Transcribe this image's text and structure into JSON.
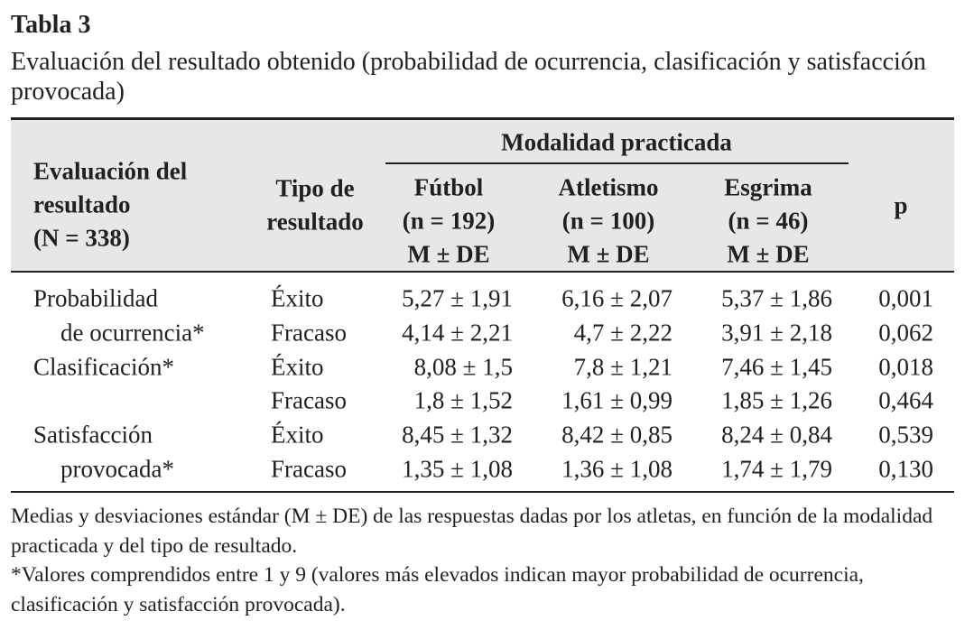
{
  "title": "Tabla 3",
  "caption": "Evaluación del resultado obtenido (probabilidad de ocurrencia, clasificación y satisfacción provocada)",
  "table": {
    "header": {
      "evaluation": [
        "Evaluación del",
        "resultado",
        "(N = 338)"
      ],
      "type": [
        "Tipo de",
        "resultado"
      ],
      "group": "Modalidad practicada",
      "sports": [
        [
          "Fútbol",
          "(n = 192)",
          "M ± DE"
        ],
        [
          "Atletismo",
          "(n = 100)",
          "M ± DE"
        ],
        [
          "Esgrima",
          "(n = 46)",
          "M ± DE"
        ]
      ],
      "p": "p"
    },
    "groups": [
      {
        "label": [
          "Probabilidad",
          "de ocurrencia*"
        ],
        "rows": [
          {
            "type": "Éxito",
            "values": [
              "5,27 ± 1,91",
              "6,16 ± 2,07",
              "5,37 ± 1,86"
            ],
            "p": "0,001"
          },
          {
            "type": "Fracaso",
            "values": [
              "4,14 ± 2,21",
              "4,7 ± 2,22",
              "3,91 ± 2,18"
            ],
            "p": "0,062"
          }
        ]
      },
      {
        "label": [
          "Clasificación*"
        ],
        "rows": [
          {
            "type": "Éxito",
            "values": [
              "8,08 ± 1,5",
              "7,8 ± 1,21",
              "7,46 ± 1,45"
            ],
            "p": "0,018"
          },
          {
            "type": "Fracaso",
            "values": [
              "1,8 ± 1,52",
              "1,61 ± 0,99",
              "1,85 ± 1,26"
            ],
            "p": "0,464"
          }
        ]
      },
      {
        "label": [
          "Satisfacción",
          "provocada*"
        ],
        "rows": [
          {
            "type": "Éxito",
            "values": [
              "8,45 ± 1,32",
              "8,42 ± 0,85",
              "8,24 ± 0,84"
            ],
            "p": "0,539"
          },
          {
            "type": "Fracaso",
            "values": [
              "1,35 ± 1,08",
              "1,36 ± 1,08",
              "1,74 ± 1,79"
            ],
            "p": "0,130"
          }
        ]
      }
    ]
  },
  "notes": [
    "Medias y desviaciones estándar (M ± DE) de las respuestas dadas por los atletas, en función de la modalidad practicada y del tipo de resultado.",
    "*Valores comprendidos entre 1 y 9 (valores más elevados indican mayor probabilidad de ocurrencia, clasificación y satisfacción provocada)."
  ]
}
